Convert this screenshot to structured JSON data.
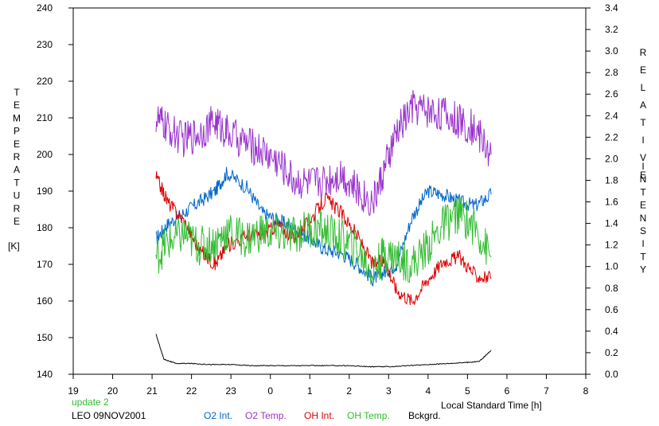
{
  "chart_data": {
    "type": "line",
    "x_axis": {
      "label": "Local Standard Time [h]",
      "ticks": [
        "19",
        "20",
        "21",
        "22",
        "23",
        "0",
        "1",
        "2",
        "3",
        "4",
        "5",
        "6",
        "7",
        "8"
      ],
      "range_hours": [
        19,
        32
      ]
    },
    "y_left": {
      "label_letters": [
        "T",
        "E",
        "M",
        "P",
        "E",
        "R",
        "A",
        "T",
        "U",
        "R",
        "E"
      ],
      "unit": "[K]",
      "range": [
        140,
        240
      ],
      "ticks": [
        "140",
        "150",
        "160",
        "170",
        "180",
        "190",
        "200",
        "210",
        "220",
        "230",
        "240"
      ]
    },
    "y_right": {
      "label_word1": [
        "R",
        "E",
        "L",
        "A",
        "T",
        "I",
        "V",
        "E"
      ],
      "label_word2": [
        "I",
        "N",
        "T",
        "E",
        "N",
        "S",
        "I",
        "T",
        "Y"
      ],
      "range": [
        0.0,
        3.4
      ],
      "ticks": [
        "0.0",
        "0.2",
        "0.4",
        "0.6",
        "0.8",
        "1.0",
        "1.2",
        "1.4",
        "1.6",
        "1.8",
        "2.0",
        "2.2",
        "2.4",
        "2.6",
        "2.8",
        "3.0",
        "3.2",
        "3.4"
      ]
    },
    "grid": false,
    "legend_position": "bottom",
    "series": [
      {
        "name": "O2 Int.",
        "color": "#0066cc",
        "axis": "left",
        "x": [
          21.1,
          21.4,
          21.8,
          22.2,
          22.6,
          22.9,
          23.4,
          23.8,
          24.2,
          24.6,
          25.0,
          25.4,
          25.8,
          26.2,
          26.6,
          26.9,
          27.2,
          27.6,
          28.0,
          28.4,
          28.8,
          29.2,
          29.6
        ],
        "y": [
          177,
          181,
          184,
          187,
          190,
          195,
          191,
          184,
          182,
          180,
          177,
          174,
          173,
          170,
          166,
          168,
          170,
          183,
          190,
          189,
          187,
          186,
          189
        ]
      },
      {
        "name": "O2 Temp.",
        "color": "#9933cc",
        "axis": "left",
        "x": [
          21.1,
          21.4,
          21.8,
          22.2,
          22.6,
          22.9,
          23.4,
          23.8,
          24.2,
          24.6,
          25.0,
          25.4,
          25.8,
          26.2,
          26.6,
          26.9,
          27.2,
          27.6,
          28.0,
          28.4,
          28.8,
          29.2,
          29.6
        ],
        "y": [
          210,
          207,
          204,
          206,
          209,
          206,
          203,
          201,
          198,
          193,
          192,
          193,
          195,
          190,
          187,
          196,
          206,
          213,
          212,
          211,
          209,
          207,
          200
        ]
      },
      {
        "name": "OH Int.",
        "color": "#dd0000",
        "axis": "left",
        "x": [
          21.1,
          21.4,
          21.8,
          22.2,
          22.6,
          22.9,
          23.4,
          23.8,
          24.2,
          24.6,
          25.0,
          25.4,
          25.8,
          26.2,
          26.6,
          26.9,
          27.2,
          27.6,
          28.0,
          28.4,
          28.8,
          29.2,
          29.6
        ],
        "y": [
          194,
          187,
          182,
          174,
          170,
          175,
          178,
          178,
          181,
          177,
          182,
          188,
          184,
          178,
          170,
          171,
          163,
          160,
          166,
          171,
          172,
          167,
          166
        ]
      },
      {
        "name": "OH Temp.",
        "color": "#33bb33",
        "axis": "left",
        "x": [
          21.1,
          21.4,
          21.8,
          22.2,
          22.6,
          22.9,
          23.4,
          23.8,
          24.2,
          24.6,
          25.0,
          25.4,
          25.8,
          26.2,
          26.6,
          26.9,
          27.2,
          27.6,
          28.0,
          28.4,
          28.8,
          29.2,
          29.6
        ],
        "y": [
          172,
          176,
          178,
          175,
          176,
          179,
          177,
          179,
          178,
          178,
          180,
          179,
          177,
          174,
          168,
          173,
          172,
          170,
          175,
          181,
          184,
          180,
          172
        ]
      },
      {
        "name": "Bckgrd.",
        "color": "#000000",
        "axis": "right",
        "x": [
          21.1,
          21.3,
          21.6,
          22.0,
          22.5,
          23.0,
          23.5,
          24.0,
          24.5,
          25.0,
          25.5,
          26.0,
          26.5,
          27.0,
          27.5,
          28.0,
          28.5,
          29.0,
          29.3,
          29.6
        ],
        "y": [
          0.37,
          0.14,
          0.1,
          0.1,
          0.09,
          0.09,
          0.08,
          0.08,
          0.08,
          0.08,
          0.08,
          0.08,
          0.07,
          0.07,
          0.08,
          0.09,
          0.1,
          0.11,
          0.12,
          0.22
        ]
      }
    ],
    "annotations": {
      "update": "update 2",
      "update_color": "#33bb33",
      "station": "LEO 09NOV2001"
    }
  }
}
